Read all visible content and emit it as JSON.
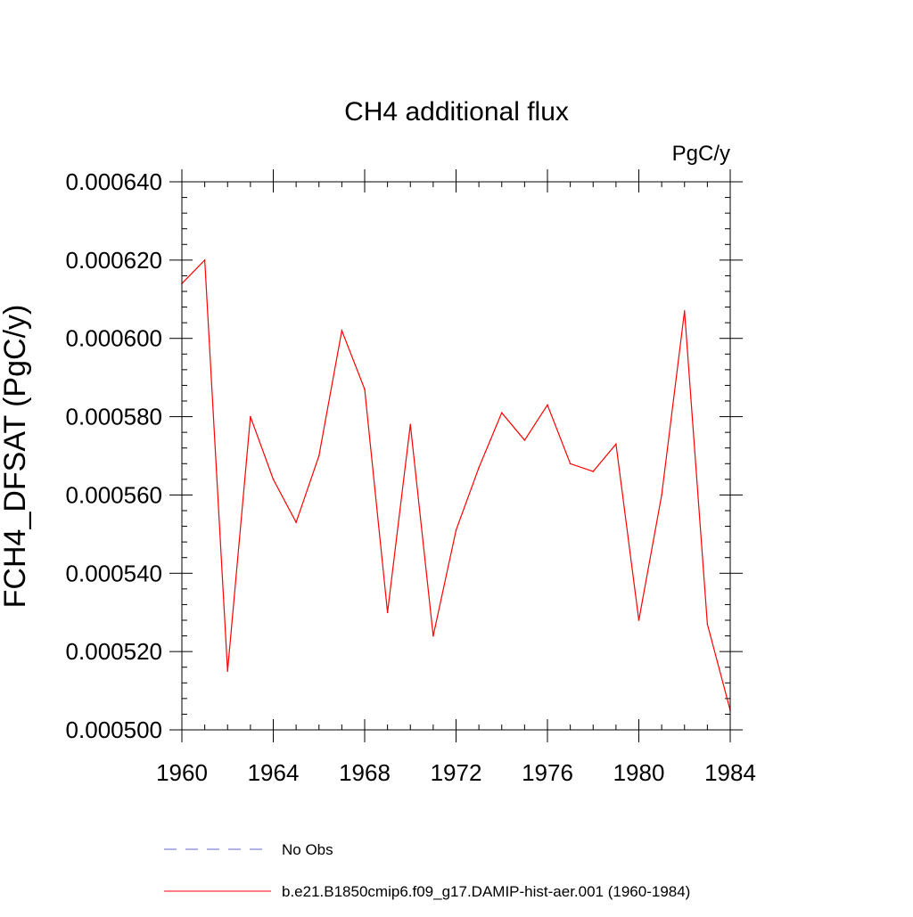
{
  "chart_data": {
    "type": "line",
    "title": "CH4 additional flux",
    "units": "PgC/y",
    "ylabel": "FCH4_DFSAT  (PgC/y)",
    "xlabel": "",
    "xlim": [
      1960,
      1984
    ],
    "ylim": [
      0.0005,
      0.00064
    ],
    "x_ticks": [
      1960,
      1964,
      1968,
      1972,
      1976,
      1980,
      1984
    ],
    "y_ticks": [
      "0.000500",
      "0.000520",
      "0.000540",
      "0.000560",
      "0.000580",
      "0.000600",
      "0.000620",
      "0.000640"
    ],
    "grid": false,
    "legend_position": "bottom",
    "x": [
      1960,
      1961,
      1962,
      1963,
      1964,
      1965,
      1966,
      1967,
      1968,
      1969,
      1970,
      1971,
      1972,
      1973,
      1974,
      1975,
      1976,
      1977,
      1978,
      1979,
      1980,
      1981,
      1982,
      1983,
      1984
    ],
    "series": [
      {
        "name": "b.e21.B1850cmip6.f09_g17.DAMIP-hist-aer.001 (1960-1984)",
        "color": "#ff0000",
        "style": "solid",
        "values": [
          0.000614,
          0.00062,
          0.000515,
          0.00058,
          0.000564,
          0.000553,
          0.00057,
          0.000602,
          0.000587,
          0.00053,
          0.000578,
          0.000524,
          0.000551,
          0.000567,
          0.000581,
          0.000574,
          0.000583,
          0.000568,
          0.000566,
          0.000573,
          0.000528,
          0.00056,
          0.000607,
          0.000527,
          0.000505
        ]
      }
    ],
    "legend": [
      {
        "label": "No Obs",
        "color": "#6666cc",
        "style": "dashed"
      },
      {
        "label": "b.e21.B1850cmip6.f09_g17.DAMIP-hist-aer.001 (1960-1984)",
        "color": "#ff0000",
        "style": "solid"
      }
    ]
  }
}
